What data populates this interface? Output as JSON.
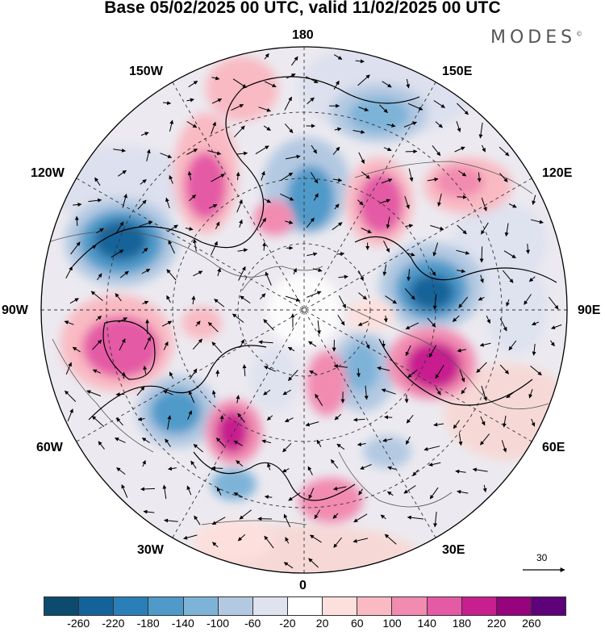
{
  "title": "Base 05/02/2025 00 UTC, valid 11/02/2025 00 UTC",
  "brand": "MODES",
  "brand_mark": "©",
  "longitude_labels": {
    "top": "180",
    "bottom": "0",
    "left": "90W",
    "right": "90E",
    "upper_left_1": "150W",
    "upper_left_2": "120W",
    "lower_left_1": "60W",
    "lower_left_2": "30W",
    "upper_right_1": "150E",
    "upper_right_2": "120E",
    "lower_right_1": "60E",
    "lower_right_2": "30E"
  },
  "vector_scale_label": "30",
  "colorbar": {
    "colors": [
      "#0c4a6e",
      "#13639a",
      "#2a7fb8",
      "#4f9ac9",
      "#7eb3d8",
      "#b3c9e2",
      "#dfe2ef",
      "#ffffff",
      "#fde0dd",
      "#f9bac3",
      "#f28bb0",
      "#e45aa5",
      "#c81f8f",
      "#96037c",
      "#5e027a"
    ],
    "ticks": [
      "-260",
      "-220",
      "-180",
      "-140",
      "-100",
      "-60",
      "-20",
      "20",
      "60",
      "100",
      "140",
      "180",
      "220",
      "260"
    ]
  }
}
